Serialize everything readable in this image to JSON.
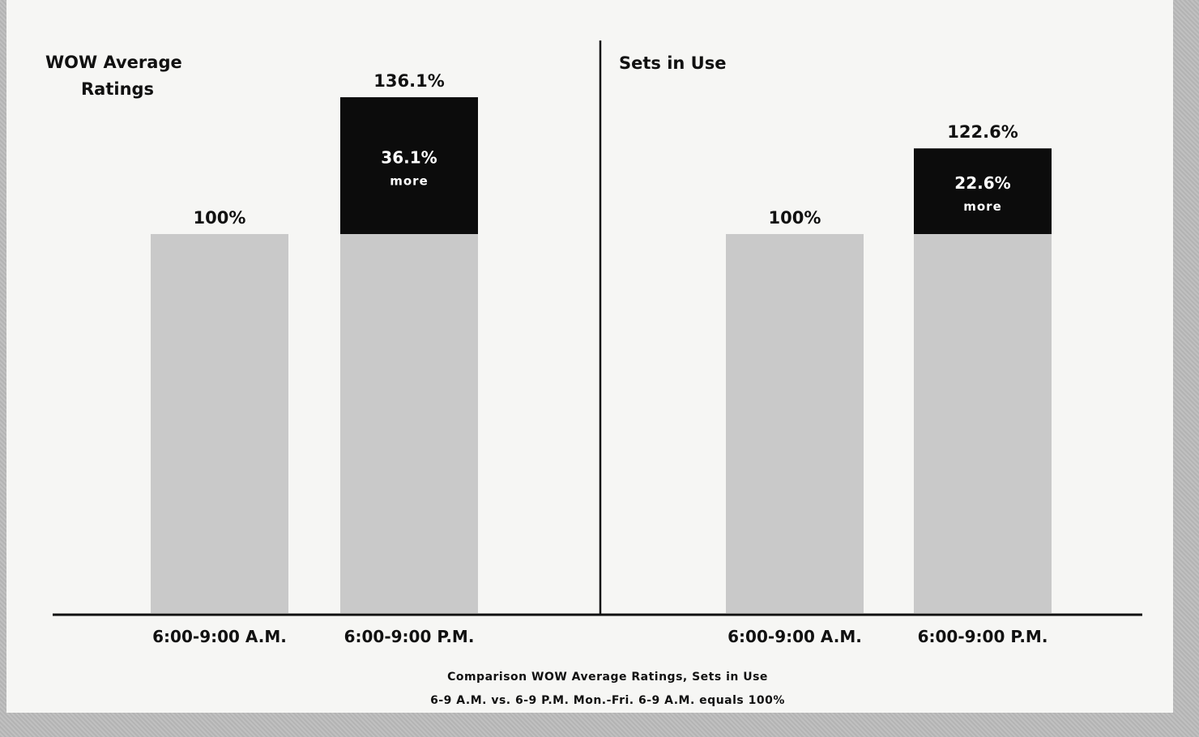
{
  "chart_data": [
    {
      "type": "bar",
      "title_lines": [
        "WOW Average",
        "Ratings"
      ],
      "categories": [
        "6:00-9:00 A.M.",
        "6:00-9:00 P.M."
      ],
      "values": [
        100,
        136.1
      ],
      "value_labels": [
        "100%",
        "136.1%"
      ],
      "increase": {
        "value": 36.1,
        "label": "36.1%",
        "sublabel": "more"
      },
      "ylim": [
        0,
        150
      ]
    },
    {
      "type": "bar",
      "title_lines": [
        "Sets in Use"
      ],
      "categories": [
        "6:00-9:00 A.M.",
        "6:00-9:00 P.M."
      ],
      "values": [
        100,
        122.6
      ],
      "value_labels": [
        "100%",
        "122.6%"
      ],
      "increase": {
        "value": 22.6,
        "label": "22.6%",
        "sublabel": "more"
      },
      "ylim": [
        0,
        150
      ]
    }
  ],
  "caption": {
    "line1": "Comparison  WOW  Average  Ratings,  Sets  in  Use",
    "line2": "6-9  A.M.  vs.  6-9  P.M.  Mon.-Fri.  6-9  A.M.  equals  100%"
  },
  "colors": {
    "base_bar": "#c9c9c9",
    "increase_bar": "#0c0c0c",
    "page": "#f6f6f4",
    "border": "#bdbdbd"
  }
}
